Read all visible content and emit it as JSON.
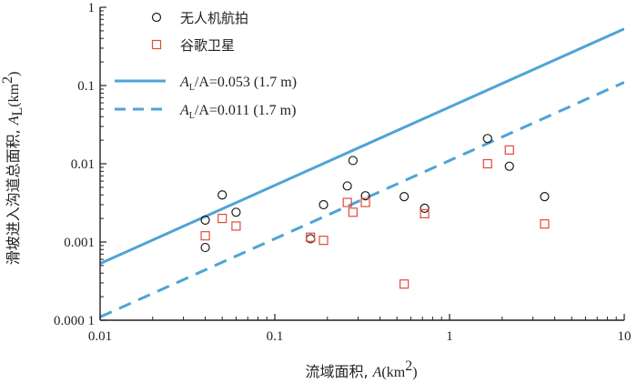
{
  "chart_data": {
    "type": "scatter",
    "x_scale": "log",
    "y_scale": "log",
    "xlim": [
      0.01,
      10
    ],
    "ylim": [
      0.0001,
      1
    ],
    "grid": false,
    "legend_position": "top-left",
    "x_ticks": [
      {
        "value": 0.01,
        "label": "0.01"
      },
      {
        "value": 0.1,
        "label": "0.1"
      },
      {
        "value": 1,
        "label": "1"
      },
      {
        "value": 10,
        "label": "10"
      }
    ],
    "y_ticks": [
      {
        "value": 0.0001,
        "label": "0.000 1"
      },
      {
        "value": 0.001,
        "label": "0.001"
      },
      {
        "value": 0.01,
        "label": "0.01"
      },
      {
        "value": 0.1,
        "label": "0.1"
      },
      {
        "value": 1,
        "label": "1"
      }
    ],
    "xlabel": {
      "main": "流域面积, ",
      "var": "A",
      "unit_open": "(km",
      "sup": "2",
      "unit_close": ")"
    },
    "ylabel": {
      "main": "滑坡进入沟道总面积, ",
      "var": "A",
      "sub": "L",
      "unit_open": "(km",
      "sup": "2",
      "unit_close": ")"
    },
    "series": [
      {
        "name": "无人机航拍",
        "kind": "scatter",
        "marker": "circle",
        "color": "#1a1a1a",
        "points": [
          [
            0.04,
            0.0019
          ],
          [
            0.04,
            0.00085
          ],
          [
            0.05,
            0.004
          ],
          [
            0.06,
            0.0024
          ],
          [
            0.16,
            0.0011
          ],
          [
            0.19,
            0.003
          ],
          [
            0.26,
            0.0052
          ],
          [
            0.28,
            0.011
          ],
          [
            0.33,
            0.0039
          ],
          [
            0.55,
            0.0038
          ],
          [
            0.72,
            0.0027
          ],
          [
            1.65,
            0.021
          ],
          [
            2.2,
            0.0093
          ],
          [
            3.5,
            0.0038
          ]
        ]
      },
      {
        "name": "谷歌卫星",
        "kind": "scatter",
        "marker": "square",
        "color": "#e04a3a",
        "points": [
          [
            0.04,
            0.0012
          ],
          [
            0.05,
            0.002
          ],
          [
            0.06,
            0.0016
          ],
          [
            0.16,
            0.00115
          ],
          [
            0.19,
            0.00105
          ],
          [
            0.26,
            0.0032
          ],
          [
            0.28,
            0.0024
          ],
          [
            0.33,
            0.0032
          ],
          [
            0.55,
            0.00029
          ],
          [
            0.72,
            0.0023
          ],
          [
            1.65,
            0.01
          ],
          [
            2.2,
            0.015
          ],
          [
            3.5,
            0.0017
          ]
        ]
      },
      {
        "name_var": "A",
        "name_sub": "L",
        "name_rest": "/A=0.053 (1.7 m)",
        "kind": "line",
        "style": "solid",
        "color": "#4fa3d6",
        "points": [
          [
            0.01,
            0.00053
          ],
          [
            10,
            0.53
          ]
        ]
      },
      {
        "name_var": "A",
        "name_sub": "L",
        "name_rest": "/A=0.011 (1.7 m)",
        "kind": "line",
        "style": "dashed",
        "color": "#4fa3d6",
        "points": [
          [
            0.01,
            0.00011
          ],
          [
            10,
            0.11
          ]
        ]
      }
    ]
  }
}
